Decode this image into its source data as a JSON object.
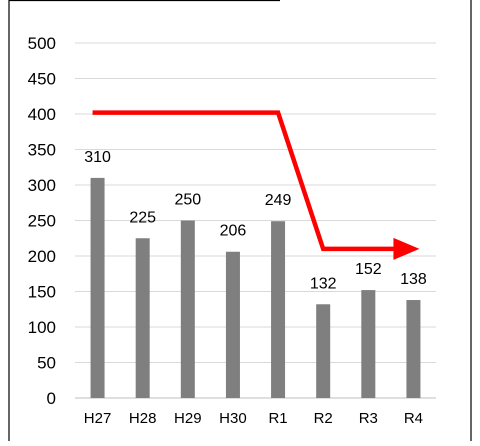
{
  "chart_data": {
    "type": "bar",
    "categories": [
      "H27",
      "H28",
      "H29",
      "H30",
      "R1",
      "R2",
      "R3",
      "R4"
    ],
    "values": [
      310,
      225,
      250,
      206,
      249,
      132,
      152,
      138
    ],
    "data_labels": [
      "310",
      "225",
      "250",
      "206",
      "249",
      "132",
      "152",
      "138"
    ],
    "ylim": [
      0,
      500
    ],
    "yticks": [
      "0",
      "50",
      "100",
      "150",
      "200",
      "250",
      "300",
      "350",
      "400",
      "450",
      "500"
    ],
    "grid": true,
    "legend": "none",
    "bar_color": "#7f7f7f",
    "annotation": {
      "type": "arrow",
      "color": "#ff0000",
      "points": [
        [
          "H27",
          402
        ],
        [
          "R1",
          402
        ],
        [
          "R2",
          210
        ],
        [
          "R4",
          210
        ]
      ]
    }
  }
}
